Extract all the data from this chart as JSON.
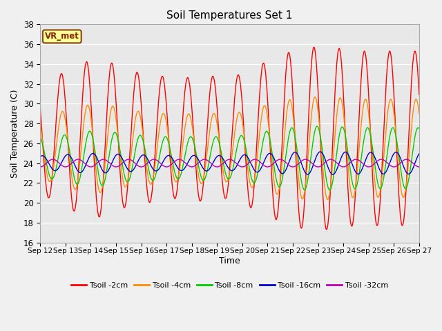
{
  "title": "Soil Temperatures Set 1",
  "xlabel": "Time",
  "ylabel": "Soil Temperature (C)",
  "ylim": [
    16,
    38
  ],
  "yticks": [
    16,
    18,
    20,
    22,
    24,
    26,
    28,
    30,
    32,
    34,
    36,
    38
  ],
  "x_start_day": 12,
  "x_end_day": 27,
  "x_tick_days": [
    12,
    13,
    14,
    15,
    16,
    17,
    18,
    19,
    20,
    21,
    22,
    23,
    24,
    25,
    26,
    27
  ],
  "series": [
    {
      "label": "Tsoil -2cm",
      "color": "#FF0000",
      "mean": 26.5,
      "amplitude": 8.0,
      "phase_hours": 14.0,
      "amp_modulation": [
        0.75,
        0.95,
        1.0,
        0.85,
        0.8,
        0.75,
        0.8,
        0.75,
        0.9,
        1.05,
        1.15,
        1.15,
        1.1,
        1.1,
        1.1
      ]
    },
    {
      "label": "Tsoil -4cm",
      "color": "#FF8C00",
      "mean": 25.5,
      "amplitude": 4.5,
      "phase_hours": 15.0,
      "amp_modulation": [
        0.75,
        0.95,
        1.0,
        0.85,
        0.8,
        0.75,
        0.8,
        0.75,
        0.9,
        1.05,
        1.15,
        1.15,
        1.1,
        1.1,
        1.1
      ]
    },
    {
      "label": "Tsoil -8cm",
      "color": "#00CC00",
      "mean": 24.5,
      "amplitude": 2.8,
      "phase_hours": 17.0,
      "amp_modulation": [
        0.75,
        0.95,
        1.0,
        0.85,
        0.8,
        0.75,
        0.8,
        0.75,
        0.9,
        1.05,
        1.15,
        1.15,
        1.1,
        1.1,
        1.1
      ]
    },
    {
      "label": "Tsoil -16cm",
      "color": "#0000CC",
      "mean": 24.0,
      "amplitude": 1.0,
      "phase_hours": 20.0,
      "amp_modulation": [
        0.75,
        0.95,
        1.0,
        0.85,
        0.8,
        0.75,
        0.8,
        0.75,
        0.9,
        1.05,
        1.15,
        1.15,
        1.1,
        1.1,
        1.1
      ]
    },
    {
      "label": "Tsoil -32cm",
      "color": "#BB00BB",
      "mean": 24.0,
      "amplitude": 0.38,
      "phase_hours": 30.0,
      "amp_modulation": [
        1.0,
        1.0,
        1.0,
        1.0,
        1.0,
        1.0,
        1.0,
        1.0,
        1.0,
        1.0,
        1.0,
        1.0,
        1.0,
        1.0,
        1.0
      ]
    }
  ],
  "watermark_text": "VR_met",
  "fig_bg_color": "#F0F0F0",
  "plot_bg_color": "#E8E8E8",
  "grid_color": "#FFFFFF"
}
